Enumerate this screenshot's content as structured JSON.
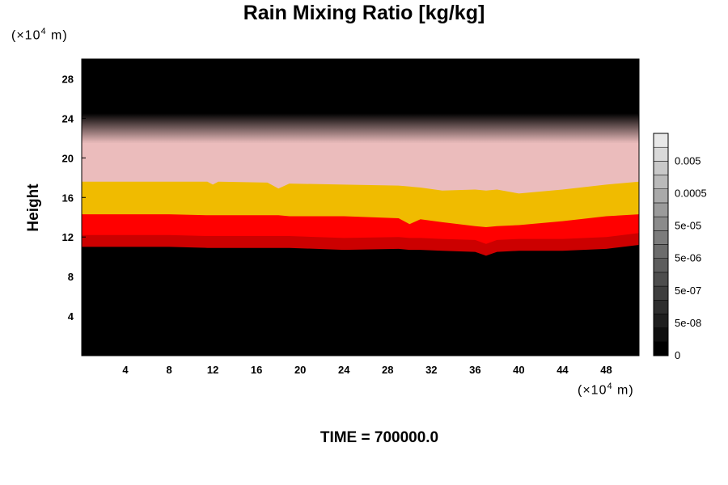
{
  "chart_data": {
    "type": "heatmap",
    "title": "Rain Mixing Ratio [kg/kg]",
    "ylabel": "Height",
    "x_unit": {
      "base": "(×10",
      "exp": "4",
      "tail": " m)"
    },
    "y_unit": {
      "base": "(×10",
      "exp": "4",
      "tail": " m)"
    },
    "xlim": [
      0,
      51
    ],
    "ylim": [
      0,
      30
    ],
    "x_ticks": [
      4,
      8,
      12,
      16,
      20,
      24,
      28,
      32,
      36,
      40,
      44,
      48
    ],
    "y_ticks": [
      4,
      8,
      12,
      16,
      20,
      24,
      28
    ],
    "colorbar": {
      "labels": [
        "0",
        "5e-08",
        "5e-07",
        "5e-06",
        "5e-05",
        "0.0005",
        "0.005"
      ],
      "levels": 16
    },
    "bands": [
      {
        "name": "black-top",
        "color": "#000000",
        "y_min": 24.5,
        "y_max": 30
      },
      {
        "name": "fade",
        "color_from": "#000000",
        "color_to": "#ebbcbc",
        "y_min": 21.5,
        "y_max": 24.5
      },
      {
        "name": "pink",
        "color": "#ebbcbc",
        "y_min": 17.5,
        "y_max": 21.5
      },
      {
        "name": "gold",
        "color": "#f0bb00",
        "y_min": 14.3,
        "y_max": 17.5
      },
      {
        "name": "red",
        "color": "#ff0000",
        "y_min": 12.2,
        "y_max": 14.3
      },
      {
        "name": "darkred",
        "color": "#cc0000",
        "y_min": 11.0,
        "y_max": 12.2
      },
      {
        "name": "black-bottom",
        "color": "#000000",
        "y_min": 0,
        "y_max": 11.0
      }
    ],
    "boundaries": {
      "x": [
        0,
        4,
        8,
        11.5,
        12,
        12.5,
        17,
        18,
        19,
        24,
        29,
        30,
        31,
        33,
        36,
        37,
        38,
        40,
        44,
        48,
        51
      ],
      "pink_gold": [
        17.6,
        17.6,
        17.6,
        17.6,
        17.3,
        17.6,
        17.5,
        16.9,
        17.4,
        17.3,
        17.2,
        17.1,
        17.0,
        16.7,
        16.8,
        16.7,
        16.8,
        16.4,
        16.8,
        17.3,
        17.6
      ],
      "gold_red": [
        14.3,
        14.3,
        14.3,
        14.2,
        14.2,
        14.2,
        14.2,
        14.2,
        14.1,
        14.1,
        13.9,
        13.3,
        13.8,
        13.5,
        13.1,
        13.0,
        13.1,
        13.2,
        13.6,
        14.1,
        14.3
      ],
      "red_black": [
        11.0,
        11.0,
        11.0,
        10.9,
        10.9,
        10.9,
        10.9,
        10.9,
        10.9,
        10.7,
        10.8,
        10.7,
        10.7,
        10.6,
        10.5,
        10.1,
        10.5,
        10.6,
        10.6,
        10.8,
        11.2
      ]
    }
  },
  "footer": {
    "time_label": "TIME = 700000.0"
  }
}
